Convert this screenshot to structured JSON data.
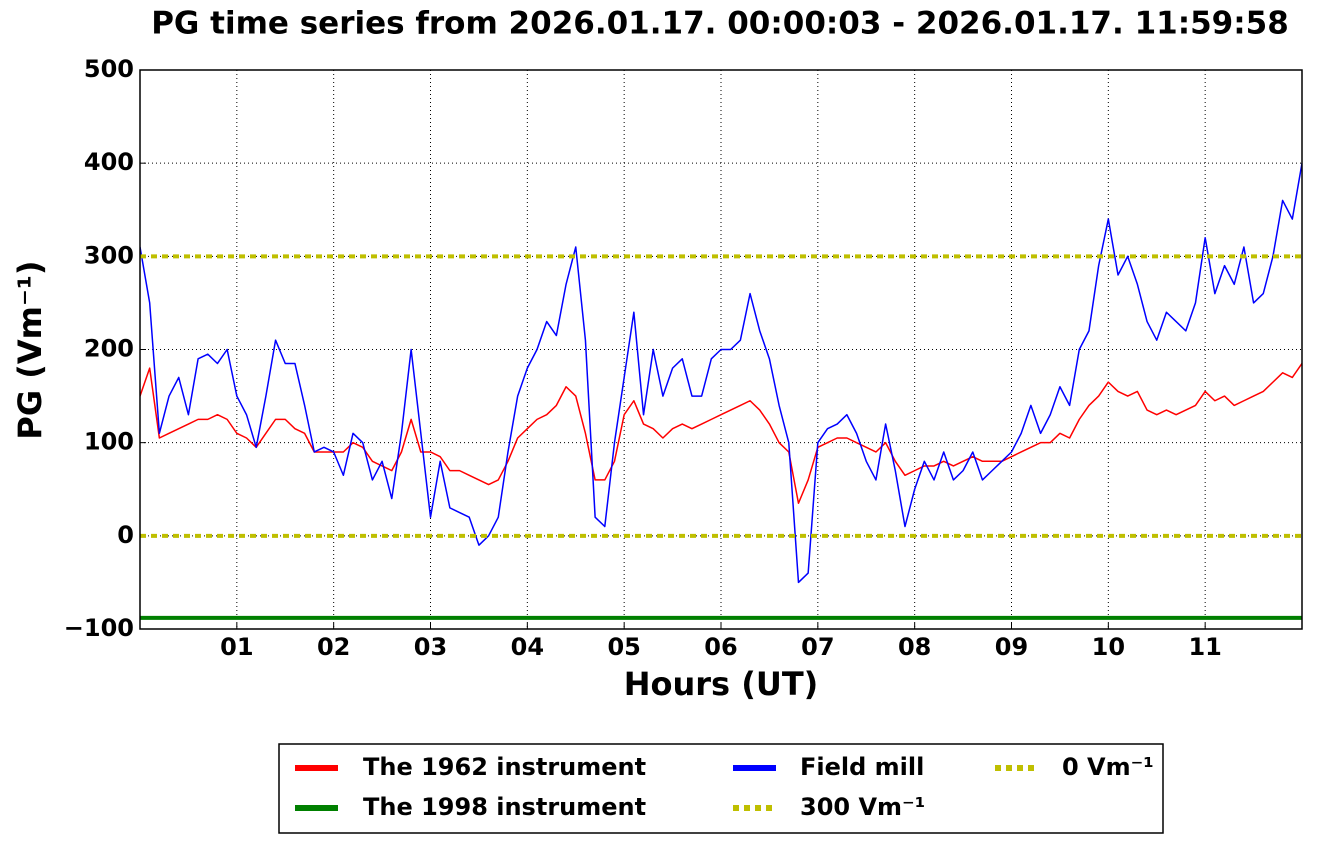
{
  "chart_data": {
    "type": "line",
    "title": "PG time series from 2026.01.17. 00:00:03 - 2026.01.17. 11:59:58",
    "x_label": "Hours (UT)",
    "y_label": "PG (Vm⁻¹)",
    "xlim": [
      0,
      12
    ],
    "ylim": [
      -100,
      500
    ],
    "xticks": [
      {
        "value": 1,
        "label": "01"
      },
      {
        "value": 2,
        "label": "02"
      },
      {
        "value": 3,
        "label": "03"
      },
      {
        "value": 4,
        "label": "04"
      },
      {
        "value": 5,
        "label": "05"
      },
      {
        "value": 6,
        "label": "06"
      },
      {
        "value": 7,
        "label": "07"
      },
      {
        "value": 8,
        "label": "08"
      },
      {
        "value": 9,
        "label": "09"
      },
      {
        "value": 10,
        "label": "10"
      },
      {
        "value": 11,
        "label": "11"
      }
    ],
    "yticks": [
      {
        "value": -100,
        "label": "−100"
      },
      0,
      100,
      200,
      300,
      400,
      500
    ],
    "grid": true,
    "legend": "lower center",
    "x": [
      0,
      0.1,
      0.2,
      0.3,
      0.4,
      0.5,
      0.6,
      0.7,
      0.8,
      0.9,
      1,
      1.1,
      1.2,
      1.3,
      1.4,
      1.5,
      1.6,
      1.7,
      1.8,
      1.9,
      2,
      2.1,
      2.2,
      2.3,
      2.4,
      2.5,
      2.6,
      2.7,
      2.8,
      2.9,
      3,
      3.1,
      3.2,
      3.3,
      3.4,
      3.5,
      3.6,
      3.7,
      3.8,
      3.9,
      4,
      4.1,
      4.2,
      4.3,
      4.4,
      4.5,
      4.6,
      4.7,
      4.8,
      4.9,
      5,
      5.1,
      5.2,
      5.3,
      5.4,
      5.5,
      5.6,
      5.7,
      5.8,
      5.9,
      6,
      6.1,
      6.2,
      6.3,
      6.4,
      6.5,
      6.6,
      6.7,
      6.8,
      6.9,
      7,
      7.1,
      7.2,
      7.3,
      7.4,
      7.5,
      7.6,
      7.7,
      7.8,
      7.9,
      8,
      8.1,
      8.2,
      8.3,
      8.4,
      8.5,
      8.6,
      8.7,
      8.8,
      8.9,
      9,
      9.1,
      9.2,
      9.3,
      9.4,
      9.5,
      9.6,
      9.7,
      9.8,
      9.9,
      10,
      10.1,
      10.2,
      10.3,
      10.4,
      10.5,
      10.6,
      10.7,
      10.8,
      10.9,
      11,
      11.1,
      11.2,
      11.3,
      11.4,
      11.5,
      11.6,
      11.7,
      11.8,
      11.9,
      12
    ],
    "series": [
      {
        "name": "The 1962 instrument",
        "color": "#ff0000",
        "style": "solid",
        "values": [
          150,
          180,
          105,
          110,
          115,
          120,
          125,
          125,
          130,
          125,
          110,
          105,
          95,
          110,
          125,
          125,
          115,
          110,
          90,
          90,
          90,
          90,
          100,
          95,
          80,
          75,
          70,
          90,
          125,
          90,
          90,
          85,
          70,
          70,
          65,
          60,
          55,
          60,
          80,
          105,
          115,
          125,
          130,
          140,
          160,
          150,
          110,
          60,
          60,
          80,
          130,
          145,
          120,
          115,
          105,
          115,
          120,
          115,
          120,
          125,
          130,
          135,
          140,
          145,
          135,
          120,
          100,
          90,
          35,
          60,
          95,
          100,
          105,
          105,
          100,
          95,
          90,
          100,
          80,
          65,
          70,
          75,
          75,
          80,
          75,
          80,
          85,
          80,
          80,
          80,
          85,
          90,
          95,
          100,
          100,
          110,
          105,
          125,
          140,
          150,
          165,
          155,
          150,
          155,
          135,
          130,
          135,
          130,
          135,
          140,
          155,
          145,
          150,
          140,
          145,
          150,
          155,
          165,
          175,
          170,
          185
        ]
      },
      {
        "name": "The 1998 instrument",
        "color": "#008000",
        "style": "thick",
        "x": [
          0,
          12
        ],
        "values": [
          -88,
          -88
        ]
      },
      {
        "name": "Field mill",
        "color": "#0000ff",
        "style": "solid",
        "values": [
          310,
          250,
          110,
          150,
          170,
          130,
          190,
          195,
          185,
          200,
          150,
          130,
          95,
          150,
          210,
          185,
          185,
          140,
          90,
          95,
          90,
          65,
          110,
          100,
          60,
          80,
          40,
          110,
          200,
          110,
          20,
          80,
          30,
          25,
          20,
          -10,
          0,
          20,
          90,
          150,
          180,
          200,
          230,
          215,
          270,
          310,
          210,
          20,
          10,
          100,
          170,
          240,
          130,
          200,
          150,
          180,
          190,
          150,
          150,
          190,
          200,
          200,
          210,
          260,
          220,
          190,
          140,
          100,
          -50,
          -40,
          100,
          115,
          120,
          130,
          110,
          80,
          60,
          120,
          70,
          10,
          50,
          80,
          60,
          90,
          60,
          70,
          90,
          60,
          70,
          80,
          90,
          110,
          140,
          110,
          130,
          160,
          140,
          200,
          220,
          290,
          340,
          280,
          300,
          270,
          230,
          210,
          240,
          230,
          220,
          250,
          320,
          260,
          290,
          270,
          310,
          250,
          260,
          300,
          360,
          340,
          400
        ]
      },
      {
        "name": "300 Vm⁻¹",
        "color": "#bfbf00",
        "style": "dotted",
        "x": [
          0,
          12
        ],
        "values": [
          300,
          300
        ]
      },
      {
        "name": "0 Vm⁻¹",
        "color": "#bfbf00",
        "style": "dotted",
        "x": [
          0,
          12
        ],
        "values": [
          0,
          0
        ]
      }
    ]
  }
}
